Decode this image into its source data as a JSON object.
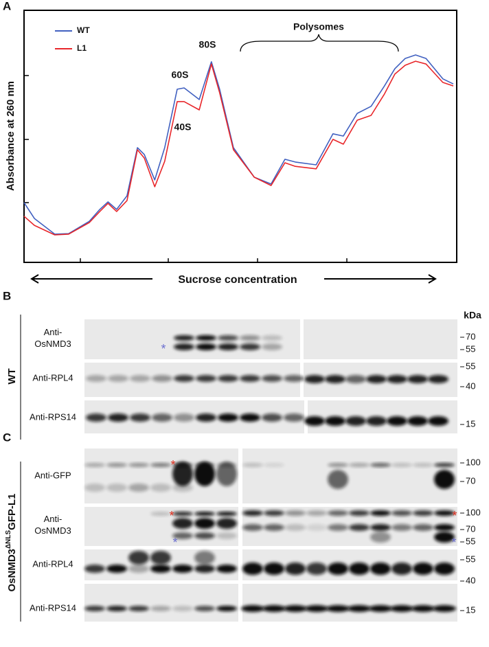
{
  "chart_data": {
    "type": "line",
    "label": "A",
    "ylabel": "Absorbance at 260 nm",
    "xlabel": "Sucrose concentration",
    "annotations": [
      "40S",
      "60S",
      "80S",
      "Polysomes"
    ],
    "xlim": [
      0,
      100
    ],
    "ylim": [
      0,
      100
    ],
    "x": [
      0,
      2.4,
      7.1,
      10.3,
      15.1,
      17.5,
      19.4,
      21.4,
      23.8,
      26.2,
      27.8,
      30.2,
      32.5,
      35.4,
      37,
      40.5,
      43.3,
      45.2,
      48.4,
      53.2,
      57.1,
      60.3,
      62.7,
      67.5,
      71.4,
      73.8,
      77,
      80.2,
      83.3,
      85.7,
      88.1,
      90.5,
      92.9,
      96.8,
      99.2
    ],
    "series": [
      {
        "name": "WT",
        "color": "#4060c0",
        "values": [
          23.7,
          17.4,
          11.2,
          11.4,
          16.3,
          21,
          24,
          21,
          26.4,
          45.5,
          42.8,
          32.7,
          45.5,
          68.7,
          69.2,
          64.6,
          79.6,
          68.7,
          45.5,
          33.8,
          31.1,
          40.9,
          39.8,
          38.7,
          51,
          50.1,
          59.1,
          61.9,
          70,
          76.8,
          80.9,
          82.3,
          80.9,
          72.8,
          70.8
        ]
      },
      {
        "name": "L1",
        "color": "#e8262a",
        "values": [
          18.3,
          14.7,
          10.9,
          11.2,
          15.8,
          20.2,
          23.4,
          20.2,
          24.5,
          44.7,
          41.4,
          30,
          40.1,
          63.8,
          63.8,
          60.5,
          78.7,
          67.3,
          44.7,
          33.8,
          30.5,
          39.5,
          38.1,
          37.1,
          48.8,
          46.9,
          56.4,
          58.3,
          66.8,
          74.7,
          78.2,
          79.8,
          78.7,
          71.4,
          70
        ]
      }
    ]
  },
  "panel_b": {
    "label": "B",
    "sample": "WT",
    "unit": "kDa",
    "rows": [
      {
        "label": [
          "Anti-",
          "OsNMD3"
        ],
        "markers": [
          70,
          55
        ]
      },
      {
        "label": [
          "Anti-RPL4"
        ],
        "markers": [
          55,
          40
        ]
      },
      {
        "label": [
          "Anti-RPS14"
        ],
        "markers": [
          15
        ]
      }
    ],
    "asterisks": [
      "*"
    ]
  },
  "panel_c": {
    "label": "C",
    "sample": [
      "OsNMD3",
      "ΔNLS",
      "GFP-L1"
    ],
    "rows": [
      {
        "label": [
          "Anti-GFP"
        ],
        "markers": [
          100,
          70
        ]
      },
      {
        "label": [
          "Anti-",
          "OsNMD3"
        ],
        "markers": [
          100,
          70,
          55
        ]
      },
      {
        "label": [
          "Anti-RPL4"
        ],
        "markers": [
          55,
          40
        ]
      },
      {
        "label": [
          "Anti-RPS14"
        ],
        "markers": [
          15
        ]
      }
    ],
    "asterisks": [
      "*",
      "*",
      "*",
      "*",
      "*"
    ]
  }
}
